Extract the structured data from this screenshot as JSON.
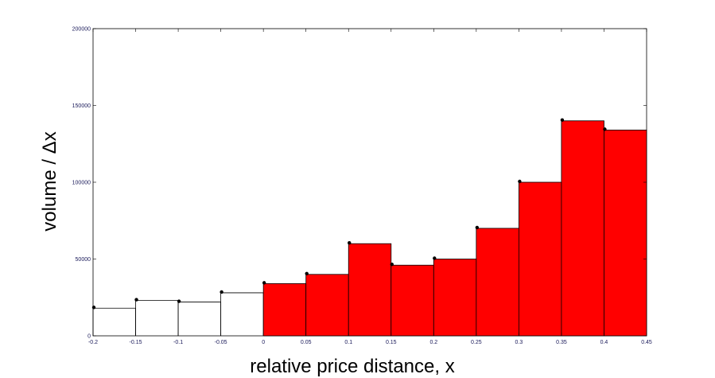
{
  "colors": {
    "positive_fill": "#ff0000",
    "negative_fill": "#ffffff",
    "edge": "#000000",
    "tick_text": "#1a1a5a"
  },
  "chart_data": {
    "type": "bar",
    "title": "",
    "xlabel": "relative price distance, x",
    "ylabel": "volume / Δx",
    "xlim": [
      -0.2,
      0.45
    ],
    "ylim": [
      0,
      200000
    ],
    "x_ticks": [
      "-0.2",
      "-0.15",
      "-0.1",
      "-0.05",
      "0",
      "0.05",
      "0.1",
      "0.15",
      "0.2",
      "0.25",
      "0.3",
      "0.35",
      "0.4",
      "0.45"
    ],
    "y_ticks": [
      "0",
      "50000",
      "100000",
      "150000",
      "200000"
    ],
    "grid": false,
    "bars": [
      {
        "x0": -0.2,
        "x1": -0.15,
        "value": 18000
      },
      {
        "x0": -0.15,
        "x1": -0.1,
        "value": 23000
      },
      {
        "x0": -0.1,
        "x1": -0.05,
        "value": 22000
      },
      {
        "x0": -0.05,
        "x1": 0.0,
        "value": 28000
      },
      {
        "x0": 0.0,
        "x1": 0.05,
        "value": 34000
      },
      {
        "x0": 0.05,
        "x1": 0.1,
        "value": 40000
      },
      {
        "x0": 0.1,
        "x1": 0.15,
        "value": 60000
      },
      {
        "x0": 0.15,
        "x1": 0.2,
        "value": 46000
      },
      {
        "x0": 0.2,
        "x1": 0.25,
        "value": 50000
      },
      {
        "x0": 0.25,
        "x1": 0.3,
        "value": 70000
      },
      {
        "x0": 0.3,
        "x1": 0.35,
        "value": 100000
      },
      {
        "x0": 0.35,
        "x1": 0.4,
        "value": 140000
      },
      {
        "x0": 0.4,
        "x1": 0.45,
        "value": 134000
      }
    ]
  }
}
